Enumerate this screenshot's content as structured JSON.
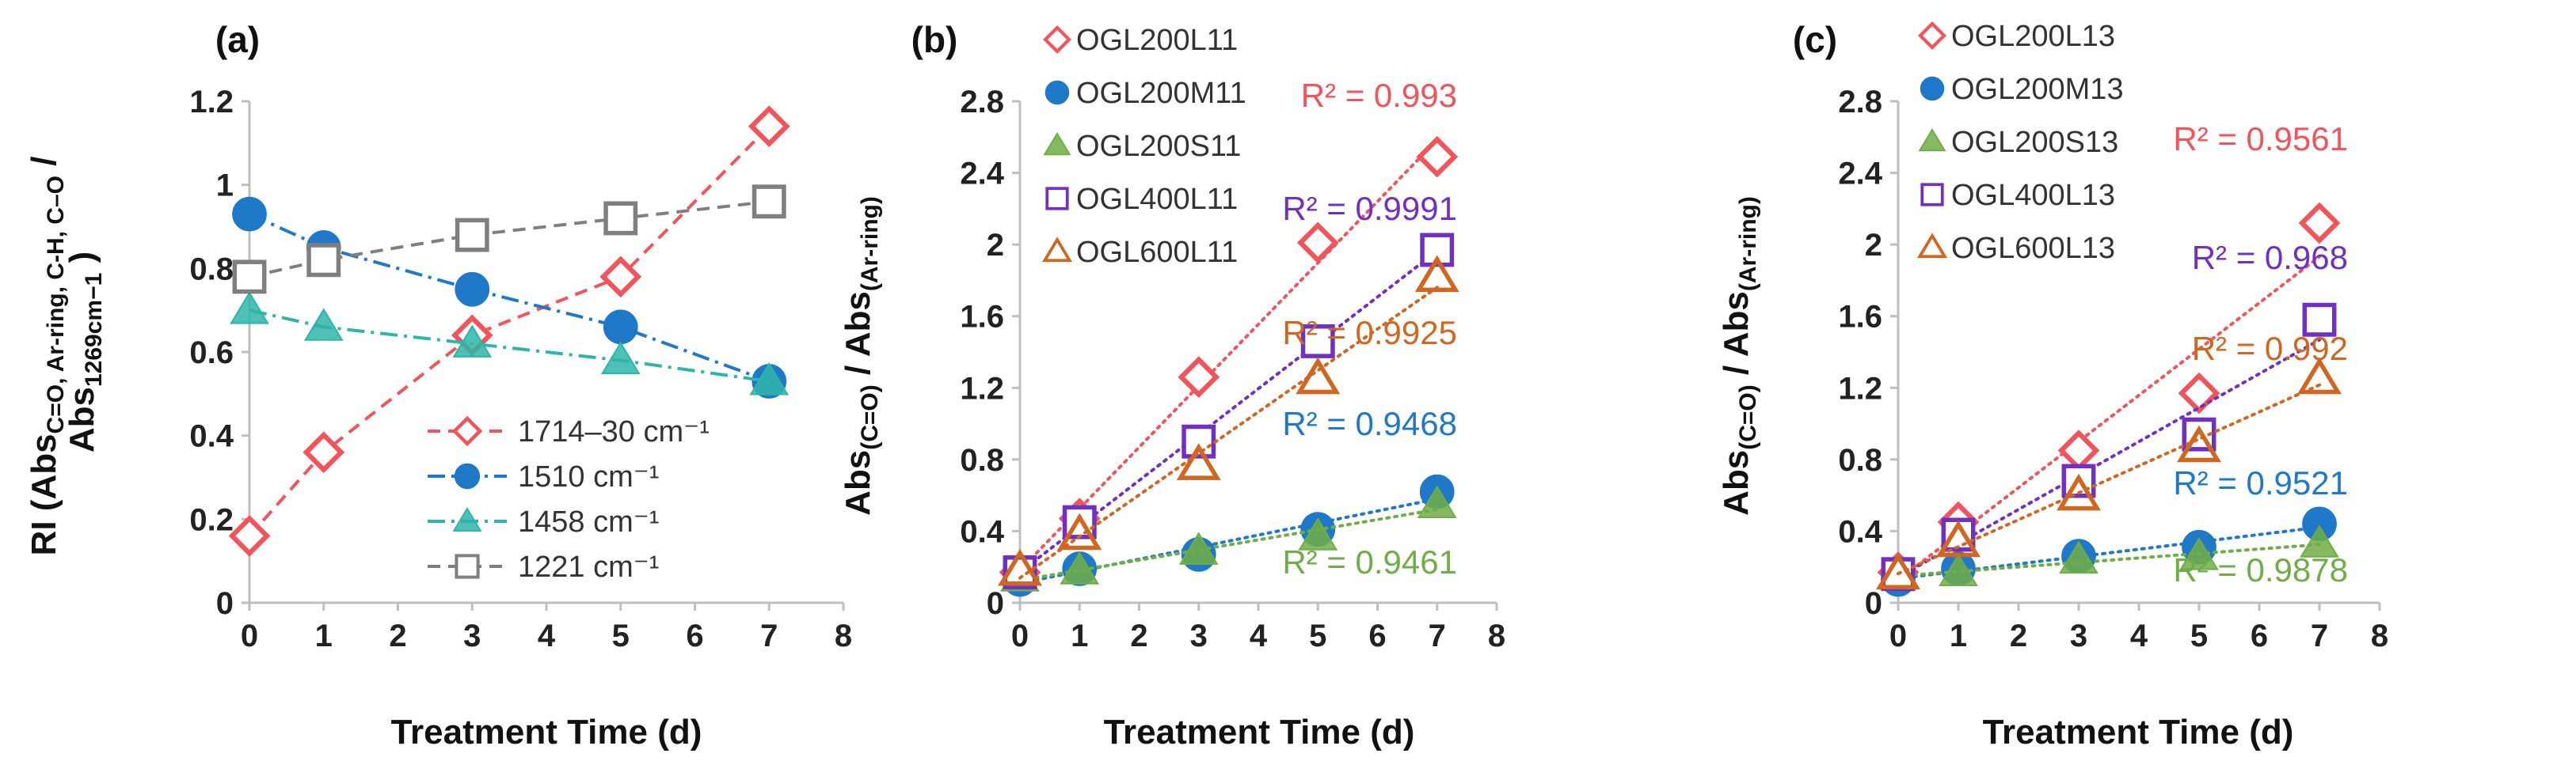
{
  "colors": {
    "red": "#f2545b",
    "blue": "#1f78c8",
    "teal": "#2fb5a8",
    "gray": "#7f7f7f",
    "green": "#70ad47",
    "purple": "#7030c0",
    "orange": "#d0661f",
    "axis": "#bfbfbf"
  },
  "chart_data": [
    {
      "id": "a",
      "panel_label": "(a)",
      "type": "line",
      "xlabel": "Treatment Time (d)",
      "ylabel": "RI (Abs C=O, Ar-ring, C-H, C–O / Abs1269cm−1 )",
      "ylabel_parts": {
        "main": "RI (Abs",
        "sub1": "C=O, Ar-ring, C-H, C–O",
        "slash": " /",
        "abs2": "Abs",
        "sub2": "1269cm−1",
        "close": " )"
      },
      "xlim": [
        0,
        8
      ],
      "ylim": [
        0,
        1.2
      ],
      "xticks": [
        "0",
        "1",
        "2",
        "3",
        "4",
        "5",
        "6",
        "7",
        "8"
      ],
      "yticks": [
        "0",
        "0.2",
        "0.4",
        "0.6",
        "0.8",
        "1",
        "1.2"
      ],
      "x": [
        0,
        1,
        3,
        5,
        7
      ],
      "series": [
        {
          "name": "1714–30 cm⁻¹",
          "marker": "diamond",
          "color": "red",
          "dash": "dash",
          "values": [
            0.16,
            0.36,
            0.64,
            0.78,
            1.14
          ]
        },
        {
          "name": "1510 cm⁻¹",
          "marker": "circle",
          "color": "blue",
          "dash": "dashdot",
          "values": [
            0.93,
            0.85,
            0.75,
            0.66,
            0.53
          ]
        },
        {
          "name": "1458 cm⁻¹",
          "marker": "triangle",
          "color": "teal",
          "dash": "dashdot",
          "values": [
            0.7,
            0.66,
            0.62,
            0.58,
            0.53
          ]
        },
        {
          "name": "1221 cm⁻¹",
          "marker": "square",
          "color": "gray",
          "dash": "dash",
          "values": [
            0.78,
            0.82,
            0.88,
            0.92,
            0.96
          ]
        }
      ]
    },
    {
      "id": "b",
      "panel_label": "(b)",
      "type": "scatter",
      "xlabel": "Treatment Time (d)",
      "ylabel": "Abs(C=O) / Abs(Ar-ring)",
      "ylabel_parts": {
        "main": "Abs",
        "sub1": "(C=O)",
        "slash": " / Abs",
        "sub2": "(Ar-ring)"
      },
      "xlim": [
        0,
        8
      ],
      "ylim": [
        0,
        2.8
      ],
      "xticks": [
        "0",
        "1",
        "2",
        "3",
        "4",
        "5",
        "6",
        "7",
        "8"
      ],
      "yticks": [
        "0",
        "0.4",
        "0.8",
        "1.2",
        "1.6",
        "2",
        "2.4",
        "2.8"
      ],
      "x": [
        0,
        1,
        3,
        5,
        7
      ],
      "series": [
        {
          "name": "OGL200L11",
          "marker": "diamond",
          "color": "red",
          "values": [
            0.17,
            0.47,
            1.26,
            2.01,
            2.49
          ],
          "r2": "R² = 0.993"
        },
        {
          "name": "OGL200M11",
          "marker": "circle",
          "color": "blue",
          "values": [
            0.13,
            0.19,
            0.27,
            0.41,
            0.62
          ],
          "r2": "R² = 0.9468"
        },
        {
          "name": "OGL200S11",
          "marker": "triangle",
          "color": "green",
          "values": [
            0.14,
            0.18,
            0.29,
            0.37,
            0.55
          ],
          "r2": "R² = 0.9461"
        },
        {
          "name": "OGL400L11",
          "marker": "square",
          "color": "purple",
          "values": [
            0.17,
            0.45,
            0.9,
            1.46,
            1.97
          ],
          "r2": "R² = 0.9991"
        },
        {
          "name": "OGL600L11",
          "marker": "triangle-open",
          "color": "orange",
          "values": [
            0.18,
            0.38,
            0.77,
            1.25,
            1.82
          ],
          "r2": "R² = 0.9925"
        }
      ]
    },
    {
      "id": "c",
      "panel_label": "(c)",
      "type": "scatter",
      "xlabel": "Treatment Time (d)",
      "ylabel": "Abs(C=O) / Abs(Ar-ring)",
      "ylabel_parts": {
        "main": "Abs",
        "sub1": "(C=O)",
        "slash": " / Abs",
        "sub2": "(Ar-ring)"
      },
      "xlim": [
        0,
        8
      ],
      "ylim": [
        0,
        2.8
      ],
      "xticks": [
        "0",
        "1",
        "2",
        "3",
        "4",
        "5",
        "6",
        "7",
        "8"
      ],
      "yticks": [
        "0",
        "0.4",
        "0.8",
        "1.2",
        "1.6",
        "2",
        "2.4",
        "2.8"
      ],
      "x": [
        0,
        1,
        3,
        5,
        7
      ],
      "series": [
        {
          "name": "OGL200L13",
          "marker": "diamond",
          "color": "red",
          "values": [
            0.17,
            0.45,
            0.85,
            1.17,
            2.12
          ],
          "r2": "R² = 0.9561"
        },
        {
          "name": "OGL200M13",
          "marker": "circle",
          "color": "blue",
          "values": [
            0.13,
            0.19,
            0.26,
            0.31,
            0.44
          ],
          "r2": "R² = 0.9521"
        },
        {
          "name": "OGL200S13",
          "marker": "triangle",
          "color": "green",
          "values": [
            0.15,
            0.17,
            0.24,
            0.26,
            0.33
          ],
          "r2": "R² = 0.9878"
        },
        {
          "name": "OGL400L13",
          "marker": "square",
          "color": "purple",
          "values": [
            0.16,
            0.38,
            0.68,
            0.94,
            1.58
          ],
          "r2": "R² = 0.968"
        },
        {
          "name": "OGL600L13",
          "marker": "triangle-open",
          "color": "orange",
          "values": [
            0.16,
            0.34,
            0.6,
            0.87,
            1.25
          ],
          "r2": "R² = 0.992"
        }
      ]
    }
  ]
}
